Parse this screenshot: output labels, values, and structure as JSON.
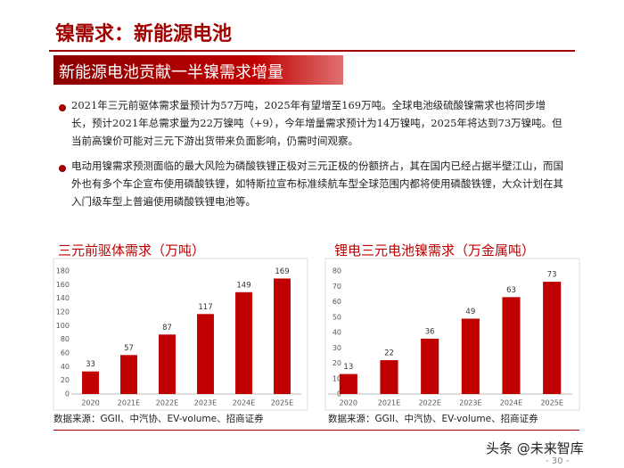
{
  "header": {
    "title": "镍需求：新能源电池",
    "banner": "新能源电池贡献一半镍需求增量"
  },
  "bullets": [
    "2021年三元前驱体需求量预计为57万吨，2025年有望增至169万吨。全球电池级硫酸镍需求也将同步增长，预计2021年总需求量为22万镍吨（+9），今年增量需求预计为14万镍吨，2025年将达到73万镍吨。但当前高镍价可能对三元下游出货带来负面影响，仍需时间观察。",
    "电动用镍需求预测面临的最大风险为磷酸铁锂正极对三元正极的份额挤占，其在国内已经占据半壁江山，而国外也有多个车企宣布使用磷酸铁锂，如特斯拉宣布标准续航车型全球范围内都将使用磷酸铁锂，大众计划在其入门级车型上普遍使用磷酸铁锂电池等。"
  ],
  "chart_data": [
    {
      "type": "bar",
      "title": "三元前驱体需求（万吨）",
      "categories": [
        "2020",
        "2021E",
        "2022E",
        "2023E",
        "2024E",
        "2025E"
      ],
      "values": [
        33,
        57,
        87,
        117,
        149,
        169
      ],
      "color": "#c00000",
      "ylim": [
        0,
        180
      ],
      "yticks": [
        0,
        20,
        40,
        60,
        80,
        100,
        120,
        140,
        160,
        180
      ],
      "source": "数据来源：GGII、中汽协、EV-volume、招商证券"
    },
    {
      "type": "bar",
      "title": "锂电三元电池镍需求（万金属吨）",
      "categories": [
        "2020",
        "2021E",
        "2022E",
        "2023E",
        "2024E",
        "2025E"
      ],
      "values": [
        13,
        22,
        36,
        49,
        63,
        73
      ],
      "color": "#c00000",
      "ylim": [
        0,
        80
      ],
      "yticks": [
        0,
        10,
        20,
        30,
        40,
        50,
        60,
        70,
        80
      ],
      "source": "数据来源：GGII、中汽协、EV-volume、招商证券"
    }
  ],
  "footer": {
    "watermark": "头条 @未来智库",
    "page": "- 30 -"
  }
}
